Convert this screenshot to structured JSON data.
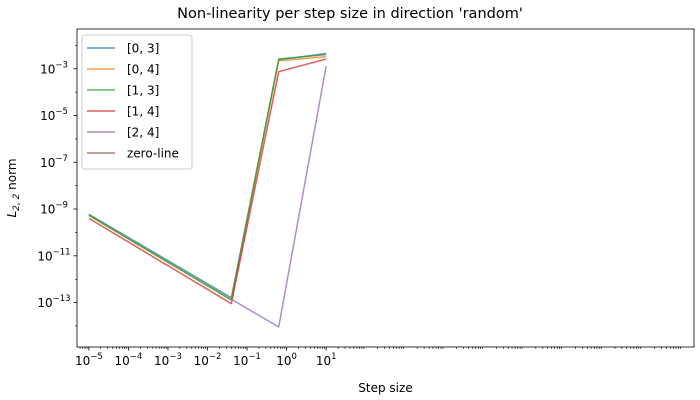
{
  "chart_data": {
    "type": "line",
    "title": "Non-linearity per step size in direction 'random'",
    "xlabel": "Step size",
    "ylabel_base": "L",
    "ylabel_sub": "2, 2",
    "ylabel_suffix": " norm",
    "xscale": "log",
    "yscale": "log",
    "xlim_exp": [
      -5.3,
      10.3
    ],
    "ylim_exp": [
      -14.9,
      -1.3
    ],
    "xticks": [
      {
        "base": "10",
        "exp": "−5",
        "value": -5
      },
      {
        "base": "10",
        "exp": "−4",
        "value": -4
      },
      {
        "base": "10",
        "exp": "−3",
        "value": -3
      },
      {
        "base": "10",
        "exp": "−2",
        "value": -2
      },
      {
        "base": "10",
        "exp": "−1",
        "value": -1
      },
      {
        "base": "10",
        "exp": "0",
        "value": 0
      },
      {
        "base": "10",
        "exp": "1",
        "value": 1
      }
    ],
    "yticks": [
      {
        "base": "10",
        "exp": "−13",
        "value": -13
      },
      {
        "base": "10",
        "exp": "−11",
        "value": -11
      },
      {
        "base": "10",
        "exp": "−9",
        "value": -9
      },
      {
        "base": "10",
        "exp": "−7",
        "value": -7
      },
      {
        "base": "10",
        "exp": "−5",
        "value": -5
      },
      {
        "base": "10",
        "exp": "−3",
        "value": -3
      }
    ],
    "grid": false,
    "legend_position": "top-left",
    "series": [
      {
        "name": "[0, 3]",
        "color": "#1f77b4",
        "x": [
          1e-05,
          0.04,
          0.63,
          10
        ],
        "y": [
          6e-10,
          1.6e-13,
          0.0024,
          0.0045
        ]
      },
      {
        "name": "[0, 4]",
        "color": "#ff7f0e",
        "x": [
          1e-05,
          0.04,
          0.63,
          10
        ],
        "y": [
          5.4e-10,
          1.3e-13,
          0.0022,
          0.0033
        ]
      },
      {
        "name": "[1, 3]",
        "color": "#2ca02c",
        "x": [
          1e-05,
          0.04,
          0.63,
          10
        ],
        "y": [
          5.4e-10,
          1.3e-13,
          0.0026,
          0.004
        ]
      },
      {
        "name": "[1, 4]",
        "color": "#d62728",
        "x": [
          1e-05,
          0.04,
          0.63,
          10
        ],
        "y": [
          4e-10,
          9e-14,
          0.00075,
          0.0026
        ]
      },
      {
        "name": "[2, 4]",
        "color": "#9467bd",
        "x": [
          0.04,
          0.63,
          10
        ],
        "y": [
          1.4e-13,
          9e-15,
          0.0013
        ]
      },
      {
        "name": "zero-line",
        "color": "#8c564b",
        "x": [],
        "y": []
      }
    ]
  }
}
